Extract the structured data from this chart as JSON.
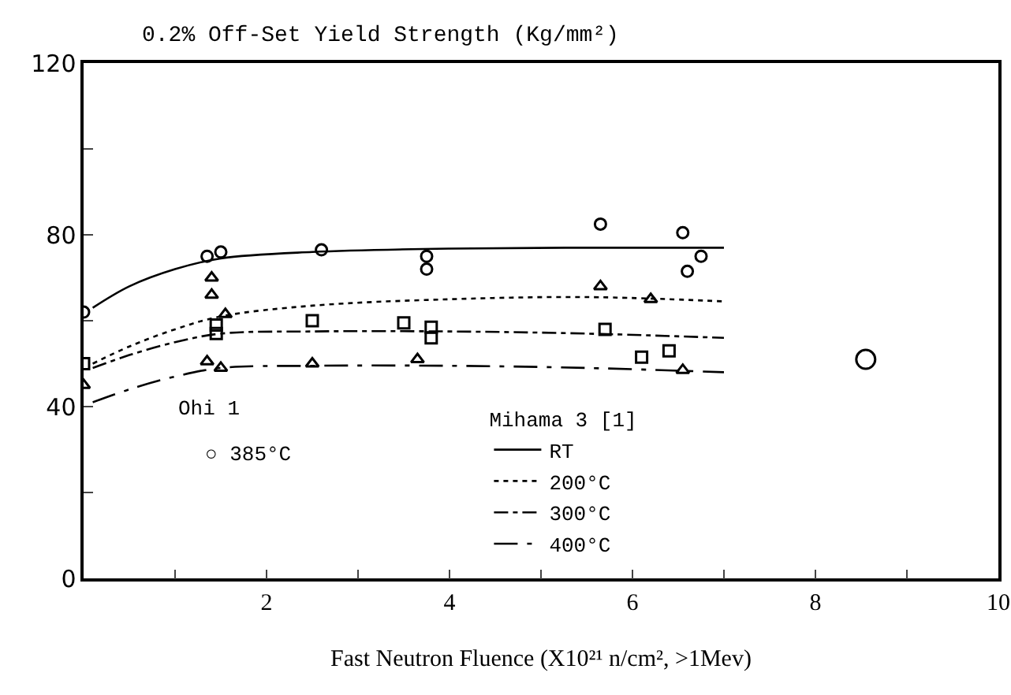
{
  "chart_data": {
    "type": "scatter",
    "ylabel": "0.2% Off-Set Yield Strength (Kg/mm²)",
    "xlabel": "Fast Neutron Fluence (X10²¹ n/cm², >1Mev)",
    "legend_title": "Mihama 3 [1]",
    "legend": "bottom right",
    "grid": false,
    "xlim": [
      0,
      10
    ],
    "xticks": [
      {
        "value": 1,
        "label": null
      },
      2,
      {
        "value": 3,
        "label": null
      },
      4,
      {
        "value": 5,
        "label": null
      },
      6,
      {
        "value": 7,
        "label": null
      },
      8,
      {
        "value": 9,
        "label": null
      },
      10
    ],
    "ylim": [
      0,
      120
    ],
    "yticks": [
      0,
      {
        "value": 20,
        "label": null
      },
      40,
      {
        "value": 60,
        "label": null
      },
      80,
      {
        "value": 100,
        "label": null
      },
      120
    ],
    "annotations": [
      "Ohi 1",
      "○ 385°C"
    ],
    "series": [
      {
        "type": "line",
        "name": "RT",
        "color": "#000000",
        "line_style": "solid",
        "x": [
          0.1,
          0.5,
          1,
          1.5,
          2.5,
          4,
          5.5,
          7
        ],
        "values": [
          63,
          68,
          72,
          74.5,
          76,
          76.8,
          77,
          77
        ]
      },
      {
        "type": "line",
        "name": "200°C",
        "color": "#000000",
        "line_style": "dotted",
        "x": [
          0.1,
          0.5,
          1,
          1.5,
          2.5,
          4,
          5.5,
          7
        ],
        "values": [
          50,
          54,
          58,
          61,
          63.5,
          65,
          65.5,
          64.5
        ]
      },
      {
        "type": "line",
        "name": "300°C",
        "color": "#000000",
        "line_style": "dashdot",
        "x": [
          0.1,
          0.5,
          1,
          1.5,
          2.5,
          4,
          5.5,
          7
        ],
        "values": [
          49,
          52,
          55,
          57,
          57.5,
          57.5,
          57,
          56
        ]
      },
      {
        "type": "line",
        "name": "400°C",
        "color": "#000000",
        "line_style": "longdashdot",
        "x": [
          0.1,
          0.5,
          1,
          1.5,
          2.5,
          4,
          5.5,
          7
        ],
        "values": [
          41,
          44,
          47,
          49,
          49.5,
          49.5,
          49,
          48
        ]
      },
      {
        "color": "#000000",
        "marker": "circle",
        "x": [
          0,
          1.35,
          1.5,
          2.6,
          3.75,
          3.75,
          5.65,
          6.55,
          6.75,
          6.6
        ],
        "values": [
          62,
          75,
          76,
          76.5,
          72,
          75,
          82.5,
          80.5,
          75,
          71.5
        ]
      },
      {
        "color": "#000000",
        "marker": "triangle",
        "x": [
          1.4,
          1.4,
          1.55,
          5.65,
          6.2
        ],
        "values": [
          66,
          70,
          61.5,
          68,
          65
        ]
      },
      {
        "color": "#000000",
        "marker": "square",
        "x": [
          0,
          1.45,
          1.45,
          2.5,
          3.5,
          3.8,
          3.8,
          5.7,
          6.1,
          6.4
        ],
        "values": [
          50,
          59,
          57,
          60,
          59.5,
          58.5,
          56,
          58,
          51.5,
          53
        ]
      },
      {
        "color": "#000000",
        "marker": "triangle",
        "x": [
          0,
          1.35,
          1.5,
          2.5,
          3.65,
          6.55
        ],
        "values": [
          45,
          50.5,
          49,
          50,
          51,
          48.5
        ]
      },
      {
        "color": "#000000",
        "marker": "circle",
        "x": [
          8.55
        ],
        "values": [
          51
        ]
      }
    ]
  }
}
